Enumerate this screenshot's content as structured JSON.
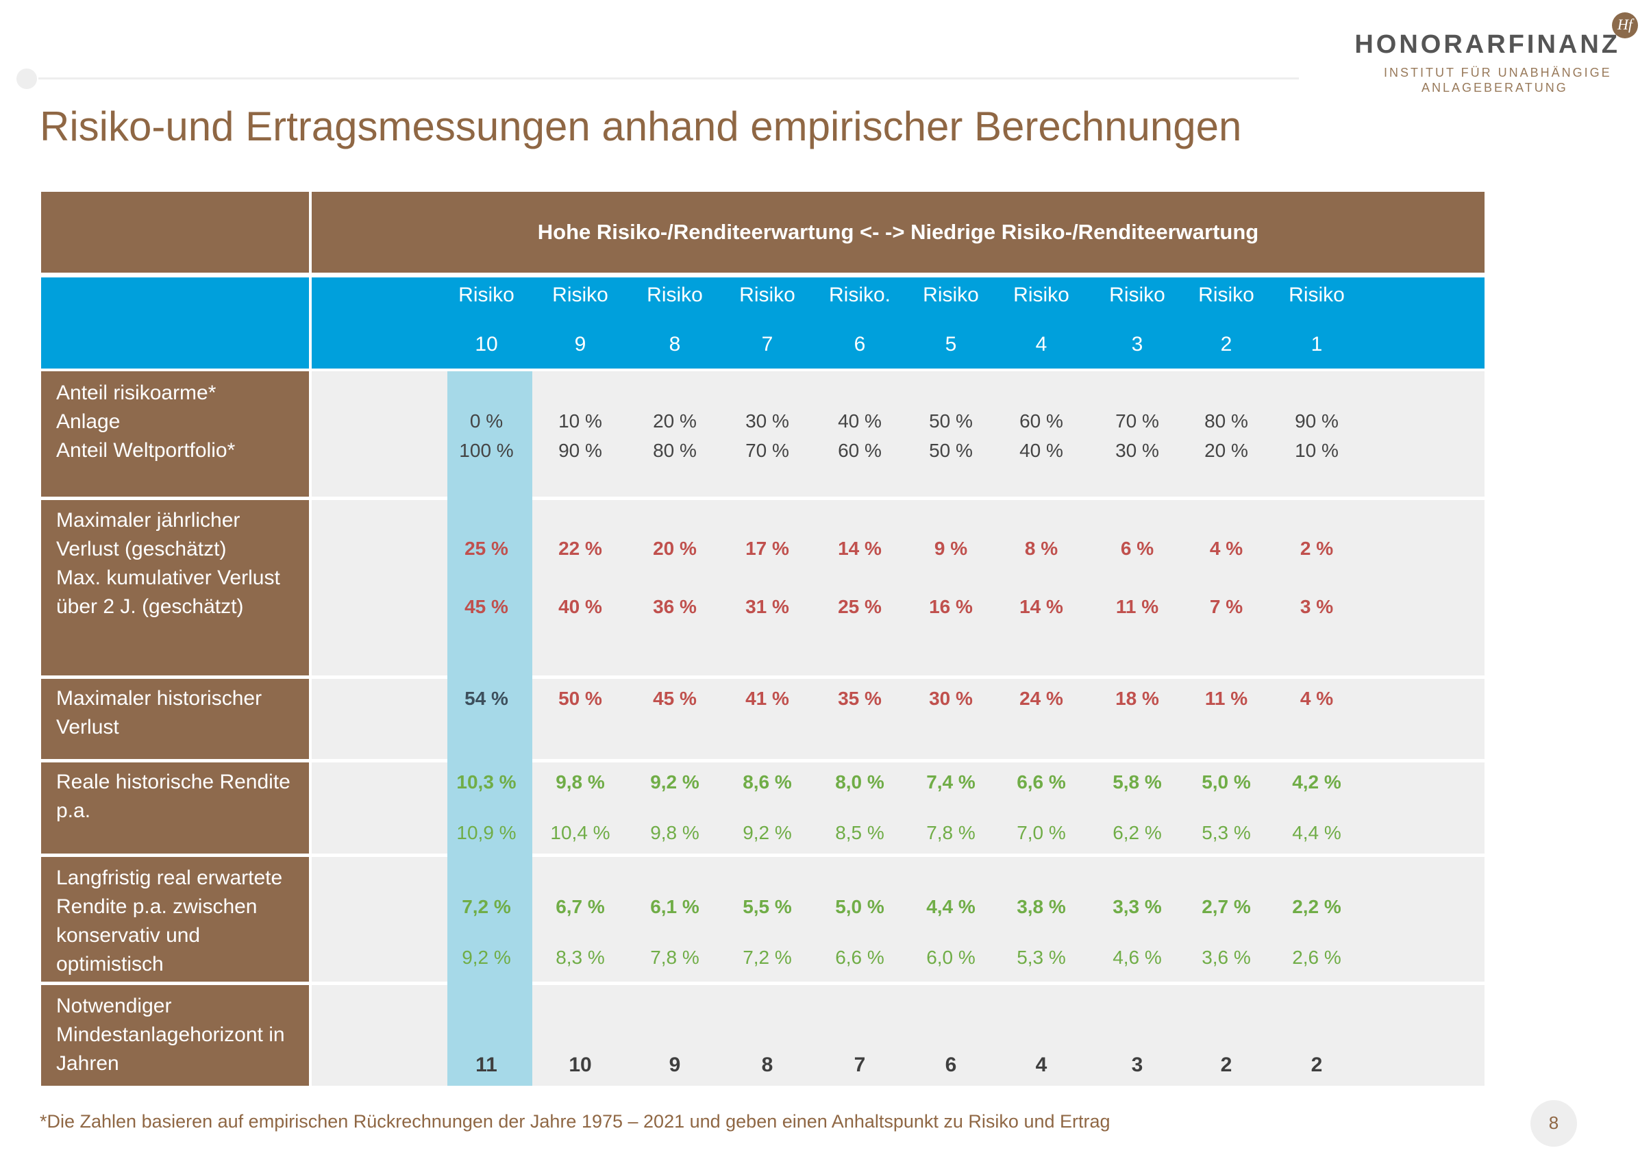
{
  "logo": {
    "name": "HONORARFINANZ",
    "badge": "Hf",
    "subtitle_line1": "INSTITUT FÜR UNABHÄNGIGE",
    "subtitle_line2": "ANLAGEBERATUNG"
  },
  "title": "Risiko-und Ertragsmessungen anhand empirischer Berechnungen",
  "table": {
    "header": "Hohe Risiko-/Renditeerwartung <- -> Niedrige Risiko-/Renditeerwartung",
    "risk_labels": [
      "Risiko",
      "Risiko",
      "Risiko",
      "Risiko",
      "Risiko.",
      "Risiko",
      "Risiko",
      "Risiko",
      "Risiko",
      "Risiko"
    ],
    "risk_numbers": [
      "10",
      "9",
      "8",
      "7",
      "6",
      "5",
      "4",
      "3",
      "2",
      "1"
    ],
    "rows": {
      "anteil": {
        "label": [
          "Anteil risikoarme*",
          "Anlage",
          "Anteil Weltportfolio*"
        ],
        "line1": [
          "0 %",
          "10 %",
          "20 %",
          "30 %",
          "40 %",
          "50 %",
          "60 %",
          "70 %",
          "80 %",
          "90 %"
        ],
        "line2": [
          "100 %",
          "90 %",
          "80 %",
          "70 %",
          "60 %",
          "50 %",
          "40 %",
          "30 %",
          "20 %",
          "10 %"
        ]
      },
      "verlust": {
        "label": [
          "Maximaler jährlicher",
          "Verlust (geschätzt)",
          "Max. kumulativer Verlust",
          "über 2 J. (geschätzt)"
        ],
        "line1": [
          "25 %",
          "22 %",
          "20 %",
          "17 %",
          "14 %",
          "9 %",
          "8 %",
          "6 %",
          "4 %",
          "2 %"
        ],
        "line2": [
          "45 %",
          "40 %",
          "36 %",
          "31 %",
          "25 %",
          "16 %",
          "14 %",
          "11 %",
          "7 %",
          "3 %"
        ]
      },
      "historisch": {
        "label": [
          "Maximaler historischer",
          "Verlust"
        ],
        "line1": [
          "54 %",
          "50 %",
          "45 %",
          "41 %",
          "35 %",
          "30 %",
          "24 %",
          "18 %",
          "11 %",
          "4 %"
        ]
      },
      "rendite": {
        "label": [
          "Reale historische Rendite",
          "p.a."
        ],
        "line1": [
          "10,3 %",
          "9,8 %",
          "9,2 %",
          "8,6 %",
          "8,0 %",
          "7,4 %",
          "6,6 %",
          "5,8 %",
          "5,0 %",
          "4,2 %"
        ],
        "line2": [
          "10,9 %",
          "10,4 %",
          "9,8 %",
          "9,2 %",
          "8,5 %",
          "7,8 %",
          "7,0 %",
          "6,2 %",
          "5,3 %",
          "4,4 %"
        ]
      },
      "erwartet": {
        "label": [
          "Langfristig real erwartete",
          "Rendite p.a. zwischen",
          "konservativ und",
          "optimistisch"
        ],
        "line1": [
          "7,2 %",
          "6,7 %",
          "6,1 %",
          "5,5 %",
          "5,0 %",
          "4,4 %",
          "3,8 %",
          "3,3 %",
          "2,7 %",
          "2,2 %"
        ],
        "line2": [
          "9,2 %",
          "8,3 %",
          "7,8 %",
          "7,2 %",
          "6,6 %",
          "6,0 %",
          "5,3 %",
          "4,6 %",
          "3,6 %",
          "2,6 %"
        ]
      },
      "horizont": {
        "label": [
          "Notwendiger",
          "Mindestanlagehorizont in",
          "Jahren"
        ],
        "line1": [
          "11",
          "10",
          "9",
          "8",
          "7",
          "6",
          "4",
          "3",
          "2",
          "2"
        ]
      }
    }
  },
  "footnote": "*Die Zahlen basieren auf empirischen Rückrechnungen der Jahre  1975 – 2021 und geben einen Anhaltspunkt zu Risiko und Ertrag",
  "page_number": "8"
}
